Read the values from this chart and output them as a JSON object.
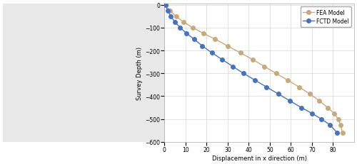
{
  "fctd_displacement": [
    0.5,
    1.5,
    3.0,
    5.0,
    7.5,
    10.5,
    14.0,
    18.0,
    22.5,
    27.5,
    32.5,
    37.5,
    43.0,
    48.5,
    54.0,
    59.5,
    65.0,
    70.0,
    74.5,
    78.5,
    82.0
  ],
  "fctd_depth": [
    0,
    -25,
    -50,
    -75,
    -100,
    -125,
    -150,
    -180,
    -210,
    -240,
    -270,
    -300,
    -330,
    -360,
    -390,
    -420,
    -450,
    -475,
    -500,
    -525,
    -560
  ],
  "fea_displacement": [
    0.5,
    2.5,
    5.5,
    9.0,
    13.5,
    18.5,
    24.0,
    30.0,
    36.0,
    42.0,
    47.5,
    53.0,
    58.5,
    64.0,
    69.0,
    73.5,
    77.5,
    80.5,
    82.5,
    83.5,
    84.5
  ],
  "fea_depth": [
    0,
    -25,
    -50,
    -75,
    -100,
    -125,
    -150,
    -180,
    -210,
    -240,
    -270,
    -300,
    -330,
    -360,
    -390,
    -420,
    -450,
    -475,
    -500,
    -525,
    -560
  ],
  "fctd_color": "#4472C4",
  "fea_color": "#C9A97A",
  "xlabel": "Displacement in x direction (m)",
  "ylabel": "Survey Depth (m)",
  "xlim": [
    0,
    90
  ],
  "ylim": [
    -600,
    5
  ],
  "xticks": [
    0,
    10,
    20,
    30,
    40,
    50,
    60,
    70,
    80
  ],
  "yticks": [
    0,
    -100,
    -200,
    -300,
    -400,
    -500,
    -600
  ],
  "legend_labels": [
    "FCTD Model",
    "FEA Model"
  ],
  "grid_color": "#D8D8D8",
  "bg_color": "#FFFFFF",
  "marker_size": 4,
  "linewidth": 1.0,
  "left_panel_color": "#E8E8E8"
}
